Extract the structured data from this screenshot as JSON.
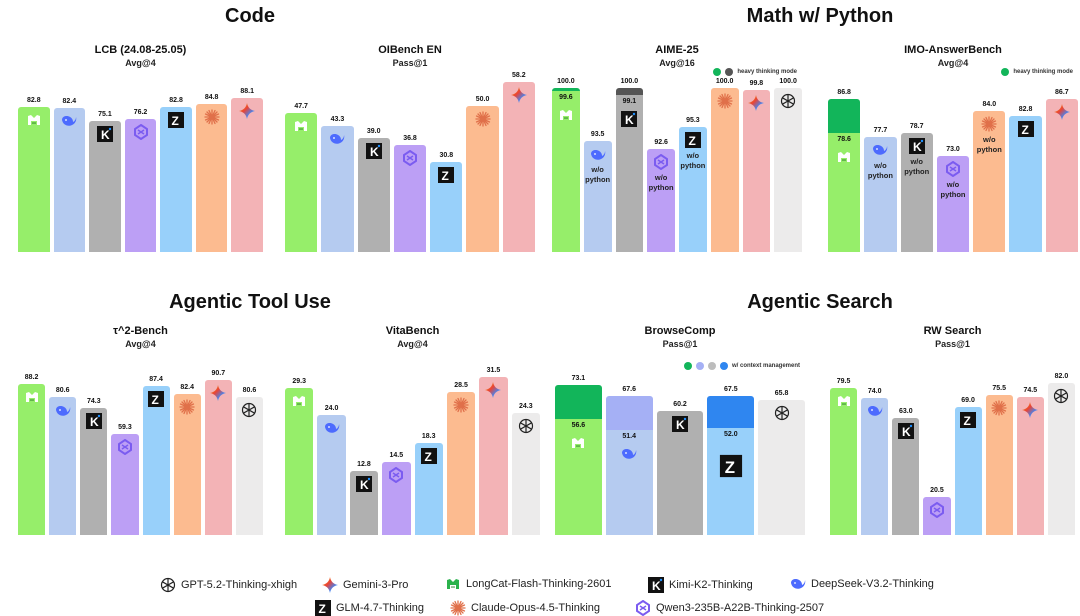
{
  "sections": [
    {
      "title": "Code"
    },
    {
      "title": "Math w/ Python"
    },
    {
      "title": "Agentic Tool Use"
    },
    {
      "title": "Agentic Search"
    }
  ],
  "colors": {
    "LongCat-Flash-Thinking-2601": "#96ee6a",
    "DeepSeek-V3.2-Thinking": "#b5cbf0",
    "Kimi-K2-Thinking": "#b0b0b0",
    "Qwen3-235B-A22B-Thinking-2507": "#bc9ff5",
    "GLM-4.7-Thinking": "#98d0fa",
    "Claude-Opus-4.5-Thinking": "#fcbb90",
    "Gemini-3-Pro": "#f3b3b6",
    "GPT-5.2-Thinking-xhigh": "#ecebeb",
    "heavy_longcat": "#12b55a",
    "heavy_kimi": "#555555",
    "ctx_deepseek": "#a5b0f5",
    "ctx_glm": "#2f86f0"
  },
  "chart_data": [
    {
      "type": "bar",
      "section": "Code",
      "title": "LCB (24.08-25.05)",
      "subtitle": "Avg@4",
      "ylim": [
        0,
        100
      ],
      "categories": [
        "LongCat-Flash-Thinking-2601",
        "DeepSeek-V3.2-Thinking",
        "Kimi-K2-Thinking",
        "Qwen3-235B-A22B-Thinking-2507",
        "GLM-4.7-Thinking",
        "Claude-Opus-4.5-Thinking",
        "Gemini-3-Pro"
      ],
      "values": [
        82.8,
        82.4,
        75.1,
        76.2,
        82.8,
        84.8,
        88.1
      ]
    },
    {
      "type": "bar",
      "section": "Code",
      "title": "OIBench EN",
      "subtitle": "Pass@1",
      "ylim": [
        0,
        70
      ],
      "categories": [
        "LongCat-Flash-Thinking-2601",
        "DeepSeek-V3.2-Thinking",
        "Kimi-K2-Thinking",
        "Qwen3-235B-A22B-Thinking-2507",
        "GLM-4.7-Thinking",
        "Claude-Opus-4.5-Thinking",
        "Gemini-3-Pro"
      ],
      "values": [
        47.7,
        43.3,
        39.0,
        36.8,
        30.8,
        50.0,
        58.2
      ]
    },
    {
      "type": "bar",
      "section": "Math w/ Python",
      "title": "AIME-25",
      "subtitle": "Avg@16",
      "ylim": [
        80,
        102
      ],
      "legend": "heavy thinking mode",
      "categories": [
        "LongCat-Flash-Thinking-2601",
        "DeepSeek-V3.2-Thinking",
        "Kimi-K2-Thinking",
        "Qwen3-235B-A22B-Thinking-2507",
        "GLM-4.7-Thinking",
        "Claude-Opus-4.5-Thinking",
        "Gemini-3-Pro",
        "GPT-5.2-Thinking-xhigh"
      ],
      "values": [
        99.6,
        93.5,
        99.1,
        92.6,
        95.3,
        100.0,
        99.8,
        100.0
      ],
      "heavy_values": [
        100.0,
        null,
        100.0,
        null,
        null,
        null,
        null,
        null
      ],
      "notes": [
        "",
        "w/o python",
        "",
        "w/o python",
        "w/o python",
        "",
        "",
        ""
      ]
    },
    {
      "type": "bar",
      "section": "Math w/ Python",
      "title": "IMO-AnswerBench",
      "subtitle": "Avg@4",
      "ylim": [
        50,
        92
      ],
      "legend": "heavy thinking mode",
      "categories": [
        "LongCat-Flash-Thinking-2601",
        "DeepSeek-V3.2-Thinking",
        "Kimi-K2-Thinking",
        "Qwen3-235B-A22B-Thinking-2507",
        "Claude-Opus-4.5-Thinking",
        "GLM-4.7-Thinking",
        "Gemini-3-Pro"
      ],
      "values": [
        78.6,
        77.7,
        78.7,
        73.0,
        84.0,
        82.8,
        86.7
      ],
      "heavy_values": [
        86.8,
        null,
        null,
        null,
        null,
        null,
        null
      ],
      "notes": [
        "",
        "w/o python",
        "w/o python",
        "w/o python",
        "w/o python",
        "",
        ""
      ]
    },
    {
      "type": "bar",
      "section": "Agentic Tool Use",
      "title": "τ^2-Bench",
      "subtitle": "Avg@4",
      "ylim": [
        0,
        100
      ],
      "categories": [
        "LongCat-Flash-Thinking-2601",
        "DeepSeek-V3.2-Thinking",
        "Kimi-K2-Thinking",
        "Qwen3-235B-A22B-Thinking-2507",
        "GLM-4.7-Thinking",
        "Claude-Opus-4.5-Thinking",
        "Gemini-3-Pro",
        "GPT-5.2-Thinking-xhigh"
      ],
      "values": [
        88.2,
        80.6,
        74.3,
        59.3,
        87.4,
        82.4,
        90.7,
        80.6
      ]
    },
    {
      "type": "bar",
      "section": "Agentic Tool Use",
      "title": "VitaBench",
      "subtitle": "Avg@4",
      "ylim": [
        0,
        37
      ],
      "categories": [
        "LongCat-Flash-Thinking-2601",
        "DeepSeek-V3.2-Thinking",
        "Kimi-K2-Thinking",
        "Qwen3-235B-A22B-Thinking-2507",
        "GLM-4.7-Thinking",
        "Claude-Opus-4.5-Thinking",
        "Gemini-3-Pro",
        "GPT-5.2-Thinking-xhigh"
      ],
      "values": [
        29.3,
        24.0,
        12.8,
        14.5,
        18.3,
        28.5,
        31.5,
        24.3
      ]
    },
    {
      "type": "bar",
      "section": "Agentic Search",
      "title": "BrowseComp",
      "subtitle": "Pass@1",
      "ylim": [
        0,
        85
      ],
      "legend": "w/ context management",
      "categories": [
        "LongCat-Flash-Thinking-2601",
        "DeepSeek-V3.2-Thinking",
        "Kimi-K2-Thinking",
        "GLM-4.7-Thinking",
        "GPT-5.2-Thinking-xhigh"
      ],
      "values": [
        56.6,
        51.4,
        60.2,
        52.0,
        65.8
      ],
      "context_values": [
        73.1,
        67.6,
        null,
        67.5,
        null
      ]
    },
    {
      "type": "bar",
      "section": "Agentic Search",
      "title": "RW Search",
      "subtitle": "Pass@1",
      "ylim": [
        0,
        95
      ],
      "categories": [
        "LongCat-Flash-Thinking-2601",
        "DeepSeek-V3.2-Thinking",
        "Kimi-K2-Thinking",
        "Qwen3-235B-A22B-Thinking-2507",
        "GLM-4.7-Thinking",
        "Claude-Opus-4.5-Thinking",
        "Gemini-3-Pro",
        "GPT-5.2-Thinking-xhigh"
      ],
      "values": [
        79.5,
        74.0,
        63.0,
        20.5,
        69.0,
        75.5,
        74.5,
        82.0
      ]
    }
  ],
  "legend": [
    {
      "label": "GPT-5.2-Thinking-xhigh",
      "icon": "openai-icon"
    },
    {
      "label": "Gemini-3-Pro",
      "icon": "gemini-icon"
    },
    {
      "label": "LongCat-Flash-Thinking-2601",
      "icon": "longcat-icon"
    },
    {
      "label": "Kimi-K2-Thinking",
      "icon": "kimi-icon"
    },
    {
      "label": "DeepSeek-V3.2-Thinking",
      "icon": "deepseek-icon"
    },
    {
      "label": "GLM-4.7-Thinking",
      "icon": "glm-icon"
    },
    {
      "label": "Claude-Opus-4.5-Thinking",
      "icon": "claude-icon"
    },
    {
      "label": "Qwen3-235B-A22B-Thinking-2507",
      "icon": "qwen-icon"
    }
  ]
}
